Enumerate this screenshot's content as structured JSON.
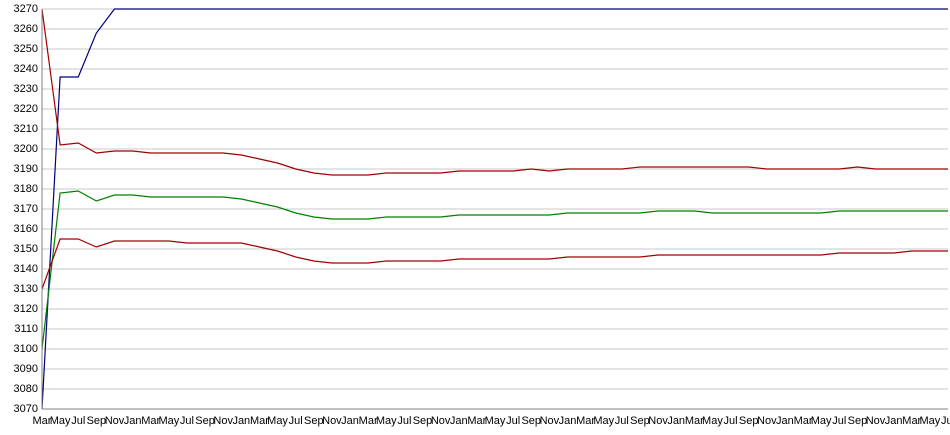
{
  "chart_data": {
    "type": "line",
    "categories": [
      "Mar",
      "May",
      "Jul",
      "Sep",
      "Nov",
      "Jan",
      "Mar",
      "May",
      "Jul",
      "Sep",
      "Nov",
      "Jan",
      "Mar",
      "May",
      "Jul",
      "Sep",
      "Nov",
      "Jan",
      "Mar",
      "May",
      "Jul",
      "Sep",
      "Nov",
      "Jan",
      "Mar",
      "May",
      "Jul",
      "Sep",
      "Nov",
      "Jan",
      "Mar",
      "May",
      "Jul",
      "Sep",
      "Nov",
      "Jan",
      "Mar",
      "May",
      "Jul",
      "Sep",
      "Nov",
      "Jan",
      "Mar",
      "May",
      "Jul",
      "Sep",
      "Nov",
      "Jan",
      "Mar",
      "May",
      "Jul"
    ],
    "series": [
      {
        "color": "#000080",
        "values": [
          3070,
          3236,
          3236,
          3258,
          3270,
          3270,
          3270,
          3270,
          3270,
          3270,
          3270,
          3270,
          3270,
          3270,
          3270,
          3270,
          3270,
          3270,
          3270,
          3270,
          3270,
          3270,
          3270,
          3270,
          3270,
          3270,
          3270,
          3270,
          3270,
          3270,
          3270,
          3270,
          3270,
          3270,
          3270,
          3270,
          3270,
          3270,
          3270,
          3270,
          3270,
          3270,
          3270,
          3270,
          3270,
          3270,
          3270,
          3270,
          3270,
          3270,
          3270
        ]
      },
      {
        "color": "#a00000",
        "values": [
          3270,
          3202,
          3203,
          3198,
          3199,
          3199,
          3198,
          3198,
          3198,
          3198,
          3198,
          3197,
          3195,
          3193,
          3190,
          3188,
          3187,
          3187,
          3187,
          3188,
          3188,
          3188,
          3188,
          3189,
          3189,
          3189,
          3189,
          3190,
          3189,
          3190,
          3190,
          3190,
          3190,
          3191,
          3191,
          3191,
          3191,
          3191,
          3191,
          3191,
          3190,
          3190,
          3190,
          3190,
          3190,
          3191,
          3190,
          3190,
          3190,
          3190,
          3190
        ]
      },
      {
        "color": "#008000",
        "values": [
          3100,
          3178,
          3179,
          3174,
          3177,
          3177,
          3176,
          3176,
          3176,
          3176,
          3176,
          3175,
          3173,
          3171,
          3168,
          3166,
          3165,
          3165,
          3165,
          3166,
          3166,
          3166,
          3166,
          3167,
          3167,
          3167,
          3167,
          3167,
          3167,
          3168,
          3168,
          3168,
          3168,
          3168,
          3169,
          3169,
          3169,
          3168,
          3168,
          3168,
          3168,
          3168,
          3168,
          3168,
          3169,
          3169,
          3169,
          3169,
          3169,
          3169,
          3169
        ]
      },
      {
        "color": "#a00000",
        "values": [
          3130,
          3155,
          3155,
          3151,
          3154,
          3154,
          3154,
          3154,
          3153,
          3153,
          3153,
          3153,
          3151,
          3149,
          3146,
          3144,
          3143,
          3143,
          3143,
          3144,
          3144,
          3144,
          3144,
          3145,
          3145,
          3145,
          3145,
          3145,
          3145,
          3146,
          3146,
          3146,
          3146,
          3146,
          3147,
          3147,
          3147,
          3147,
          3147,
          3147,
          3147,
          3147,
          3147,
          3147,
          3148,
          3148,
          3148,
          3148,
          3149,
          3149,
          3149
        ]
      }
    ],
    "ylim": [
      3070,
      3270
    ],
    "yticks": [
      3070,
      3080,
      3090,
      3100,
      3110,
      3120,
      3130,
      3140,
      3150,
      3160,
      3170,
      3180,
      3190,
      3200,
      3210,
      3220,
      3230,
      3240,
      3250,
      3260,
      3270
    ],
    "grid": true
  }
}
